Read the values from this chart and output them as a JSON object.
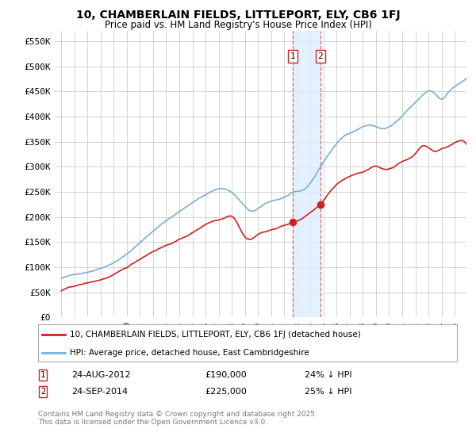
{
  "title": "10, CHAMBERLAIN FIELDS, LITTLEPORT, ELY, CB6 1FJ",
  "subtitle": "Price paid vs. HM Land Registry's House Price Index (HPI)",
  "ylim": [
    0,
    570000
  ],
  "yticks": [
    0,
    50000,
    100000,
    150000,
    200000,
    250000,
    300000,
    350000,
    400000,
    450000,
    500000,
    550000
  ],
  "ytick_labels": [
    "£0",
    "£50K",
    "£100K",
    "£150K",
    "£200K",
    "£250K",
    "£300K",
    "£350K",
    "£400K",
    "£450K",
    "£500K",
    "£550K"
  ],
  "hpi_color": "#7bafd4",
  "price_color": "#cc2222",
  "marker_color": "#cc2222",
  "vline_color": "#dd6666",
  "shade_color": "#ddeeff",
  "legend_label_price": "10, CHAMBERLAIN FIELDS, LITTLEPORT, ELY, CB6 1FJ (detached house)",
  "legend_label_hpi": "HPI: Average price, detached house, East Cambridgeshire",
  "annotation1_date": "24-AUG-2012",
  "annotation1_price": "£190,000",
  "annotation1_pct": "24% ↓ HPI",
  "annotation2_date": "24-SEP-2014",
  "annotation2_price": "£225,000",
  "annotation2_pct": "25% ↓ HPI",
  "footnote": "Contains HM Land Registry data © Crown copyright and database right 2025.\nThis data is licensed under the Open Government Licence v3.0.",
  "background_color": "#ffffff",
  "grid_color": "#cccccc"
}
